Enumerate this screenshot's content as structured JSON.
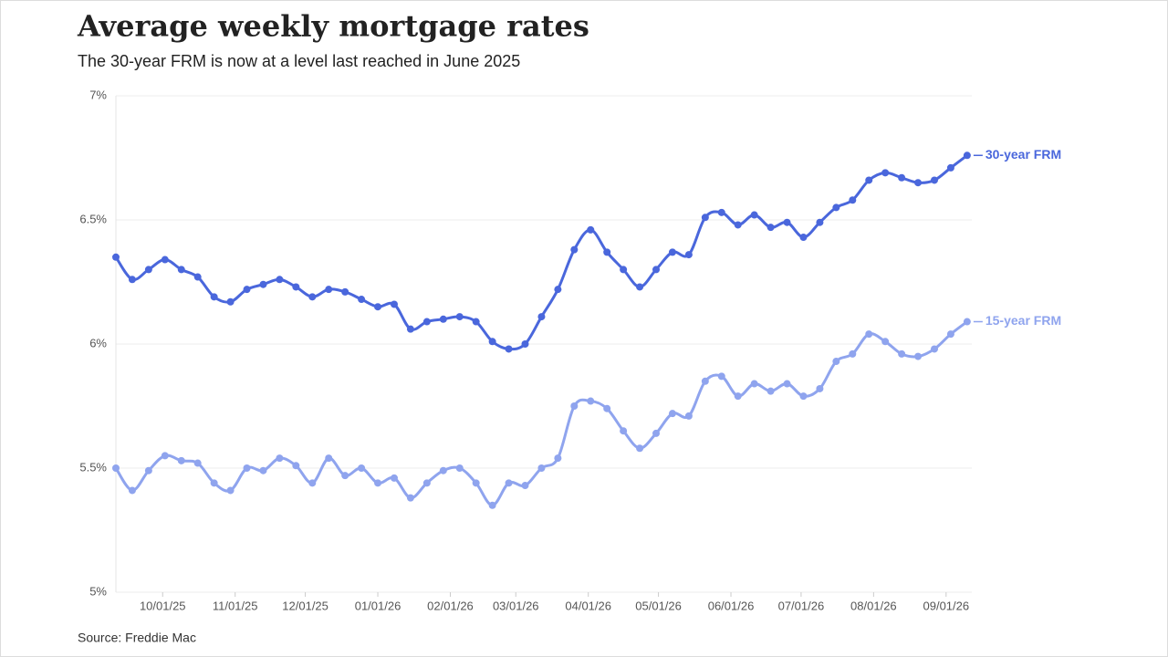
{
  "chart_data": {
    "type": "line",
    "title": "Average weekly mortgage rates",
    "subtitle": "The 30-year FRM is now at a level last reached in June 2025",
    "source": "Source: Freddie Mac",
    "x": [
      "2025-09-11",
      "2025-09-18",
      "2025-09-25",
      "2025-10-02",
      "2025-10-09",
      "2025-10-16",
      "2025-10-23",
      "2025-10-30",
      "2025-11-06",
      "2025-11-13",
      "2025-11-20",
      "2025-11-27",
      "2025-12-04",
      "2025-12-11",
      "2025-12-18",
      "2025-12-25",
      "2026-01-01",
      "2026-01-08",
      "2026-01-15",
      "2026-01-22",
      "2026-01-29",
      "2026-02-05",
      "2026-02-12",
      "2026-02-19",
      "2026-02-26",
      "2026-03-05",
      "2026-03-12",
      "2026-03-19",
      "2026-03-26",
      "2026-04-02",
      "2026-04-09",
      "2026-04-16",
      "2026-04-23",
      "2026-04-30",
      "2026-05-07",
      "2026-05-14",
      "2026-05-21",
      "2026-05-28",
      "2026-06-04",
      "2026-06-11",
      "2026-06-18",
      "2026-06-25",
      "2026-07-02",
      "2026-07-09",
      "2026-07-16",
      "2026-07-23",
      "2026-07-30",
      "2026-08-06",
      "2026-08-13",
      "2026-08-20",
      "2026-08-27",
      "2026-09-03",
      "2026-09-10"
    ],
    "series": [
      {
        "name": "30-year FRM",
        "color": "#4a67dc",
        "values": [
          6.35,
          6.26,
          6.3,
          6.34,
          6.3,
          6.27,
          6.19,
          6.17,
          6.22,
          6.24,
          6.26,
          6.23,
          6.19,
          6.22,
          6.21,
          6.18,
          6.15,
          6.16,
          6.06,
          6.09,
          6.1,
          6.11,
          6.09,
          6.01,
          5.98,
          6.0,
          6.11,
          6.22,
          6.38,
          6.46,
          6.37,
          6.3,
          6.23,
          6.3,
          6.37,
          6.36,
          6.51,
          6.53,
          6.48,
          6.52,
          6.47,
          6.49,
          6.43,
          6.49,
          6.55,
          6.58,
          6.66,
          6.69,
          6.67,
          6.65,
          6.66,
          6.71,
          6.76
        ]
      },
      {
        "name": "15-year FRM",
        "color": "#8fa4ee",
        "values": [
          5.5,
          5.41,
          5.49,
          5.55,
          5.53,
          5.52,
          5.44,
          5.41,
          5.5,
          5.49,
          5.54,
          5.51,
          5.44,
          5.54,
          5.47,
          5.5,
          5.44,
          5.46,
          5.38,
          5.44,
          5.49,
          5.5,
          5.44,
          5.35,
          5.44,
          5.43,
          5.5,
          5.54,
          5.75,
          5.77,
          5.74,
          5.65,
          5.58,
          5.64,
          5.72,
          5.71,
          5.85,
          5.87,
          5.79,
          5.84,
          5.81,
          5.84,
          5.79,
          5.82,
          5.93,
          5.96,
          6.04,
          6.01,
          5.96,
          5.95,
          5.98,
          6.04,
          6.09
        ]
      }
    ],
    "xlim": [
      "2025-09-11",
      "2026-09-12"
    ],
    "xticks": [
      {
        "value": "2025-10-01",
        "label": "10/01/25"
      },
      {
        "value": "2025-11-01",
        "label": "11/01/25"
      },
      {
        "value": "2025-12-01",
        "label": "12/01/25"
      },
      {
        "value": "2026-01-01",
        "label": "01/01/26"
      },
      {
        "value": "2026-02-01",
        "label": "02/01/26"
      },
      {
        "value": "2026-03-01",
        "label": "03/01/26"
      },
      {
        "value": "2026-04-01",
        "label": "04/01/26"
      },
      {
        "value": "2026-05-01",
        "label": "05/01/26"
      },
      {
        "value": "2026-06-01",
        "label": "06/01/26"
      },
      {
        "value": "2026-07-01",
        "label": "07/01/26"
      },
      {
        "value": "2026-08-01",
        "label": "08/01/26"
      },
      {
        "value": "2026-09-01",
        "label": "09/01/26"
      }
    ],
    "ylim": [
      5,
      7
    ],
    "yticks": [
      {
        "value": 5,
        "label": "5%"
      },
      {
        "value": 5.5,
        "label": "5.5%"
      },
      {
        "value": 6,
        "label": "6%"
      },
      {
        "value": 6.5,
        "label": "6.5%"
      },
      {
        "value": 7,
        "label": "7%"
      }
    ],
    "grid": true
  }
}
